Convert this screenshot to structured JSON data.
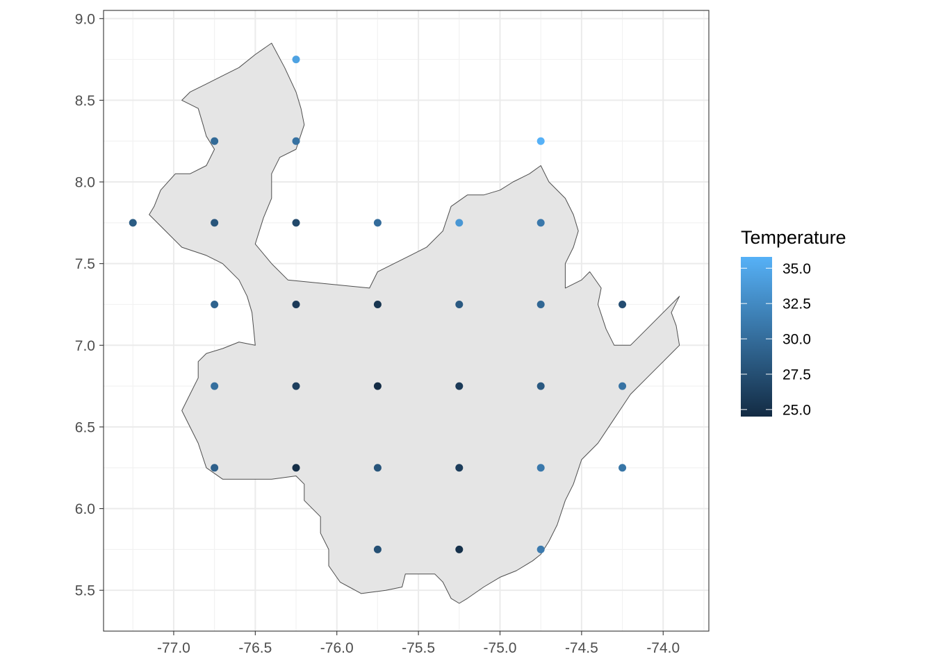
{
  "chart_data": {
    "type": "scatter",
    "title": "",
    "xlabel": "",
    "ylabel": "",
    "xlim": [
      -77.43,
      -73.72
    ],
    "ylim": [
      5.25,
      9.05
    ],
    "x_ticks": [
      -77.0,
      -76.5,
      -76.0,
      -75.5,
      -75.0,
      -74.5,
      -74.0
    ],
    "x_tick_labels": [
      "-77.0",
      "-76.5",
      "-76.0",
      "-75.5",
      "-75.0",
      "-74.5",
      "-74.0"
    ],
    "y_ticks": [
      5.5,
      6.0,
      6.5,
      7.0,
      7.5,
      8.0,
      8.5,
      9.0
    ],
    "y_tick_labels": [
      "5.5",
      "6.0",
      "6.5",
      "7.0",
      "7.5",
      "8.0",
      "8.5",
      "9.0"
    ],
    "grid": true,
    "legend": {
      "title": "Temperature",
      "placement": "right",
      "type": "colorbar",
      "range": [
        24.5,
        35.8
      ],
      "breaks": [
        35.0,
        32.5,
        30.0,
        27.5,
        25.0
      ],
      "labels": [
        "35.0",
        "32.5",
        "30.0",
        "27.5",
        "25.0"
      ],
      "low_color": "#132B43",
      "high_color": "#56B1F7"
    },
    "region": {
      "fill": "#e5e5e5",
      "stroke": "#4d4d4d",
      "outline": [
        [
          -76.99,
          8.05
        ],
        [
          -77.08,
          7.95
        ],
        [
          -77.12,
          7.85
        ],
        [
          -77.15,
          7.8
        ],
        [
          -77.05,
          7.7
        ],
        [
          -76.95,
          7.6
        ],
        [
          -76.8,
          7.55
        ],
        [
          -76.7,
          7.5
        ],
        [
          -76.6,
          7.4
        ],
        [
          -76.55,
          7.3
        ],
        [
          -76.52,
          7.2
        ],
        [
          -76.5,
          7.0
        ],
        [
          -76.6,
          7.02
        ],
        [
          -76.7,
          6.98
        ],
        [
          -76.8,
          6.95
        ],
        [
          -76.85,
          6.9
        ],
        [
          -76.85,
          6.8
        ],
        [
          -76.9,
          6.7
        ],
        [
          -76.95,
          6.6
        ],
        [
          -76.9,
          6.5
        ],
        [
          -76.85,
          6.4
        ],
        [
          -76.8,
          6.25
        ],
        [
          -76.7,
          6.18
        ],
        [
          -76.5,
          6.18
        ],
        [
          -76.4,
          6.18
        ],
        [
          -76.25,
          6.2
        ],
        [
          -76.2,
          6.15
        ],
        [
          -76.2,
          6.05
        ],
        [
          -76.1,
          5.95
        ],
        [
          -76.1,
          5.85
        ],
        [
          -76.05,
          5.75
        ],
        [
          -76.05,
          5.65
        ],
        [
          -75.98,
          5.55
        ],
        [
          -75.85,
          5.48
        ],
        [
          -75.7,
          5.5
        ],
        [
          -75.6,
          5.52
        ],
        [
          -75.58,
          5.6
        ],
        [
          -75.5,
          5.6
        ],
        [
          -75.4,
          5.6
        ],
        [
          -75.35,
          5.55
        ],
        [
          -75.3,
          5.45
        ],
        [
          -75.25,
          5.42
        ],
        [
          -75.2,
          5.45
        ],
        [
          -75.1,
          5.52
        ],
        [
          -75.0,
          5.58
        ],
        [
          -74.9,
          5.62
        ],
        [
          -74.8,
          5.68
        ],
        [
          -74.75,
          5.72
        ],
        [
          -74.7,
          5.8
        ],
        [
          -74.65,
          5.9
        ],
        [
          -74.6,
          6.05
        ],
        [
          -74.55,
          6.15
        ],
        [
          -74.5,
          6.3
        ],
        [
          -74.4,
          6.4
        ],
        [
          -74.3,
          6.55
        ],
        [
          -74.2,
          6.7
        ],
        [
          -74.1,
          6.8
        ],
        [
          -74.0,
          6.9
        ],
        [
          -73.9,
          7.0
        ],
        [
          -73.92,
          7.12
        ],
        [
          -73.95,
          7.2
        ],
        [
          -73.9,
          7.3
        ],
        [
          -74.0,
          7.2
        ],
        [
          -74.1,
          7.1
        ],
        [
          -74.2,
          7.0
        ],
        [
          -74.3,
          7.0
        ],
        [
          -74.35,
          7.1
        ],
        [
          -74.4,
          7.25
        ],
        [
          -74.38,
          7.35
        ],
        [
          -74.45,
          7.45
        ],
        [
          -74.5,
          7.4
        ],
        [
          -74.6,
          7.35
        ],
        [
          -74.6,
          7.5
        ],
        [
          -74.55,
          7.6
        ],
        [
          -74.52,
          7.7
        ],
        [
          -74.55,
          7.8
        ],
        [
          -74.6,
          7.9
        ],
        [
          -74.7,
          8.0
        ],
        [
          -74.75,
          8.1
        ],
        [
          -74.82,
          8.05
        ],
        [
          -74.92,
          8.0
        ],
        [
          -75.0,
          7.95
        ],
        [
          -75.1,
          7.92
        ],
        [
          -75.2,
          7.92
        ],
        [
          -75.3,
          7.85
        ],
        [
          -75.35,
          7.7
        ],
        [
          -75.45,
          7.6
        ],
        [
          -75.55,
          7.55
        ],
        [
          -75.65,
          7.5
        ],
        [
          -75.75,
          7.45
        ],
        [
          -75.8,
          7.35
        ],
        [
          -76.3,
          7.4
        ],
        [
          -76.4,
          7.5
        ],
        [
          -76.5,
          7.62
        ],
        [
          -76.45,
          7.78
        ],
        [
          -76.4,
          7.9
        ],
        [
          -76.4,
          8.05
        ],
        [
          -76.35,
          8.15
        ],
        [
          -76.25,
          8.2
        ],
        [
          -76.2,
          8.35
        ],
        [
          -76.22,
          8.45
        ],
        [
          -76.25,
          8.55
        ],
        [
          -76.32,
          8.7
        ],
        [
          -76.4,
          8.85
        ],
        [
          -76.5,
          8.78
        ],
        [
          -76.6,
          8.7
        ],
        [
          -76.7,
          8.65
        ],
        [
          -76.8,
          8.6
        ],
        [
          -76.9,
          8.55
        ],
        [
          -76.95,
          8.5
        ],
        [
          -76.85,
          8.45
        ],
        [
          -76.82,
          8.35
        ],
        [
          -76.8,
          8.28
        ],
        [
          -76.75,
          8.2
        ],
        [
          -76.8,
          8.1
        ],
        [
          -76.9,
          8.05
        ],
        [
          -76.99,
          8.05
        ]
      ]
    },
    "points": [
      {
        "x": -76.25,
        "y": 8.75,
        "value": 34.5
      },
      {
        "x": -76.75,
        "y": 8.25,
        "value": 29.8
      },
      {
        "x": -76.25,
        "y": 8.25,
        "value": 30.4
      },
      {
        "x": -74.75,
        "y": 8.25,
        "value": 35.8
      },
      {
        "x": -77.25,
        "y": 7.75,
        "value": 28.6
      },
      {
        "x": -76.75,
        "y": 7.75,
        "value": 28.0
      },
      {
        "x": -76.25,
        "y": 7.75,
        "value": 27.0
      },
      {
        "x": -75.75,
        "y": 7.75,
        "value": 30.0
      },
      {
        "x": -75.25,
        "y": 7.75,
        "value": 33.6
      },
      {
        "x": -74.75,
        "y": 7.75,
        "value": 31.0
      },
      {
        "x": -76.75,
        "y": 7.25,
        "value": 29.2
      },
      {
        "x": -76.25,
        "y": 7.25,
        "value": 25.8
      },
      {
        "x": -75.75,
        "y": 7.25,
        "value": 25.4
      },
      {
        "x": -75.25,
        "y": 7.25,
        "value": 28.4
      },
      {
        "x": -74.75,
        "y": 7.25,
        "value": 29.6
      },
      {
        "x": -74.25,
        "y": 7.25,
        "value": 27.4
      },
      {
        "x": -76.75,
        "y": 6.75,
        "value": 30.2
      },
      {
        "x": -76.25,
        "y": 6.75,
        "value": 26.2
      },
      {
        "x": -75.75,
        "y": 6.75,
        "value": 24.6
      },
      {
        "x": -75.25,
        "y": 6.75,
        "value": 25.8
      },
      {
        "x": -74.75,
        "y": 6.75,
        "value": 28.4
      },
      {
        "x": -74.25,
        "y": 6.75,
        "value": 30.6
      },
      {
        "x": -76.75,
        "y": 6.25,
        "value": 29.0
      },
      {
        "x": -76.25,
        "y": 6.25,
        "value": 24.8
      },
      {
        "x": -75.75,
        "y": 6.25,
        "value": 28.0
      },
      {
        "x": -75.25,
        "y": 6.25,
        "value": 26.0
      },
      {
        "x": -74.75,
        "y": 6.25,
        "value": 31.0
      },
      {
        "x": -74.25,
        "y": 6.25,
        "value": 30.8
      },
      {
        "x": -75.75,
        "y": 5.75,
        "value": 27.6
      },
      {
        "x": -75.25,
        "y": 5.75,
        "value": 25.0
      },
      {
        "x": -74.75,
        "y": 5.75,
        "value": 31.2
      }
    ]
  }
}
